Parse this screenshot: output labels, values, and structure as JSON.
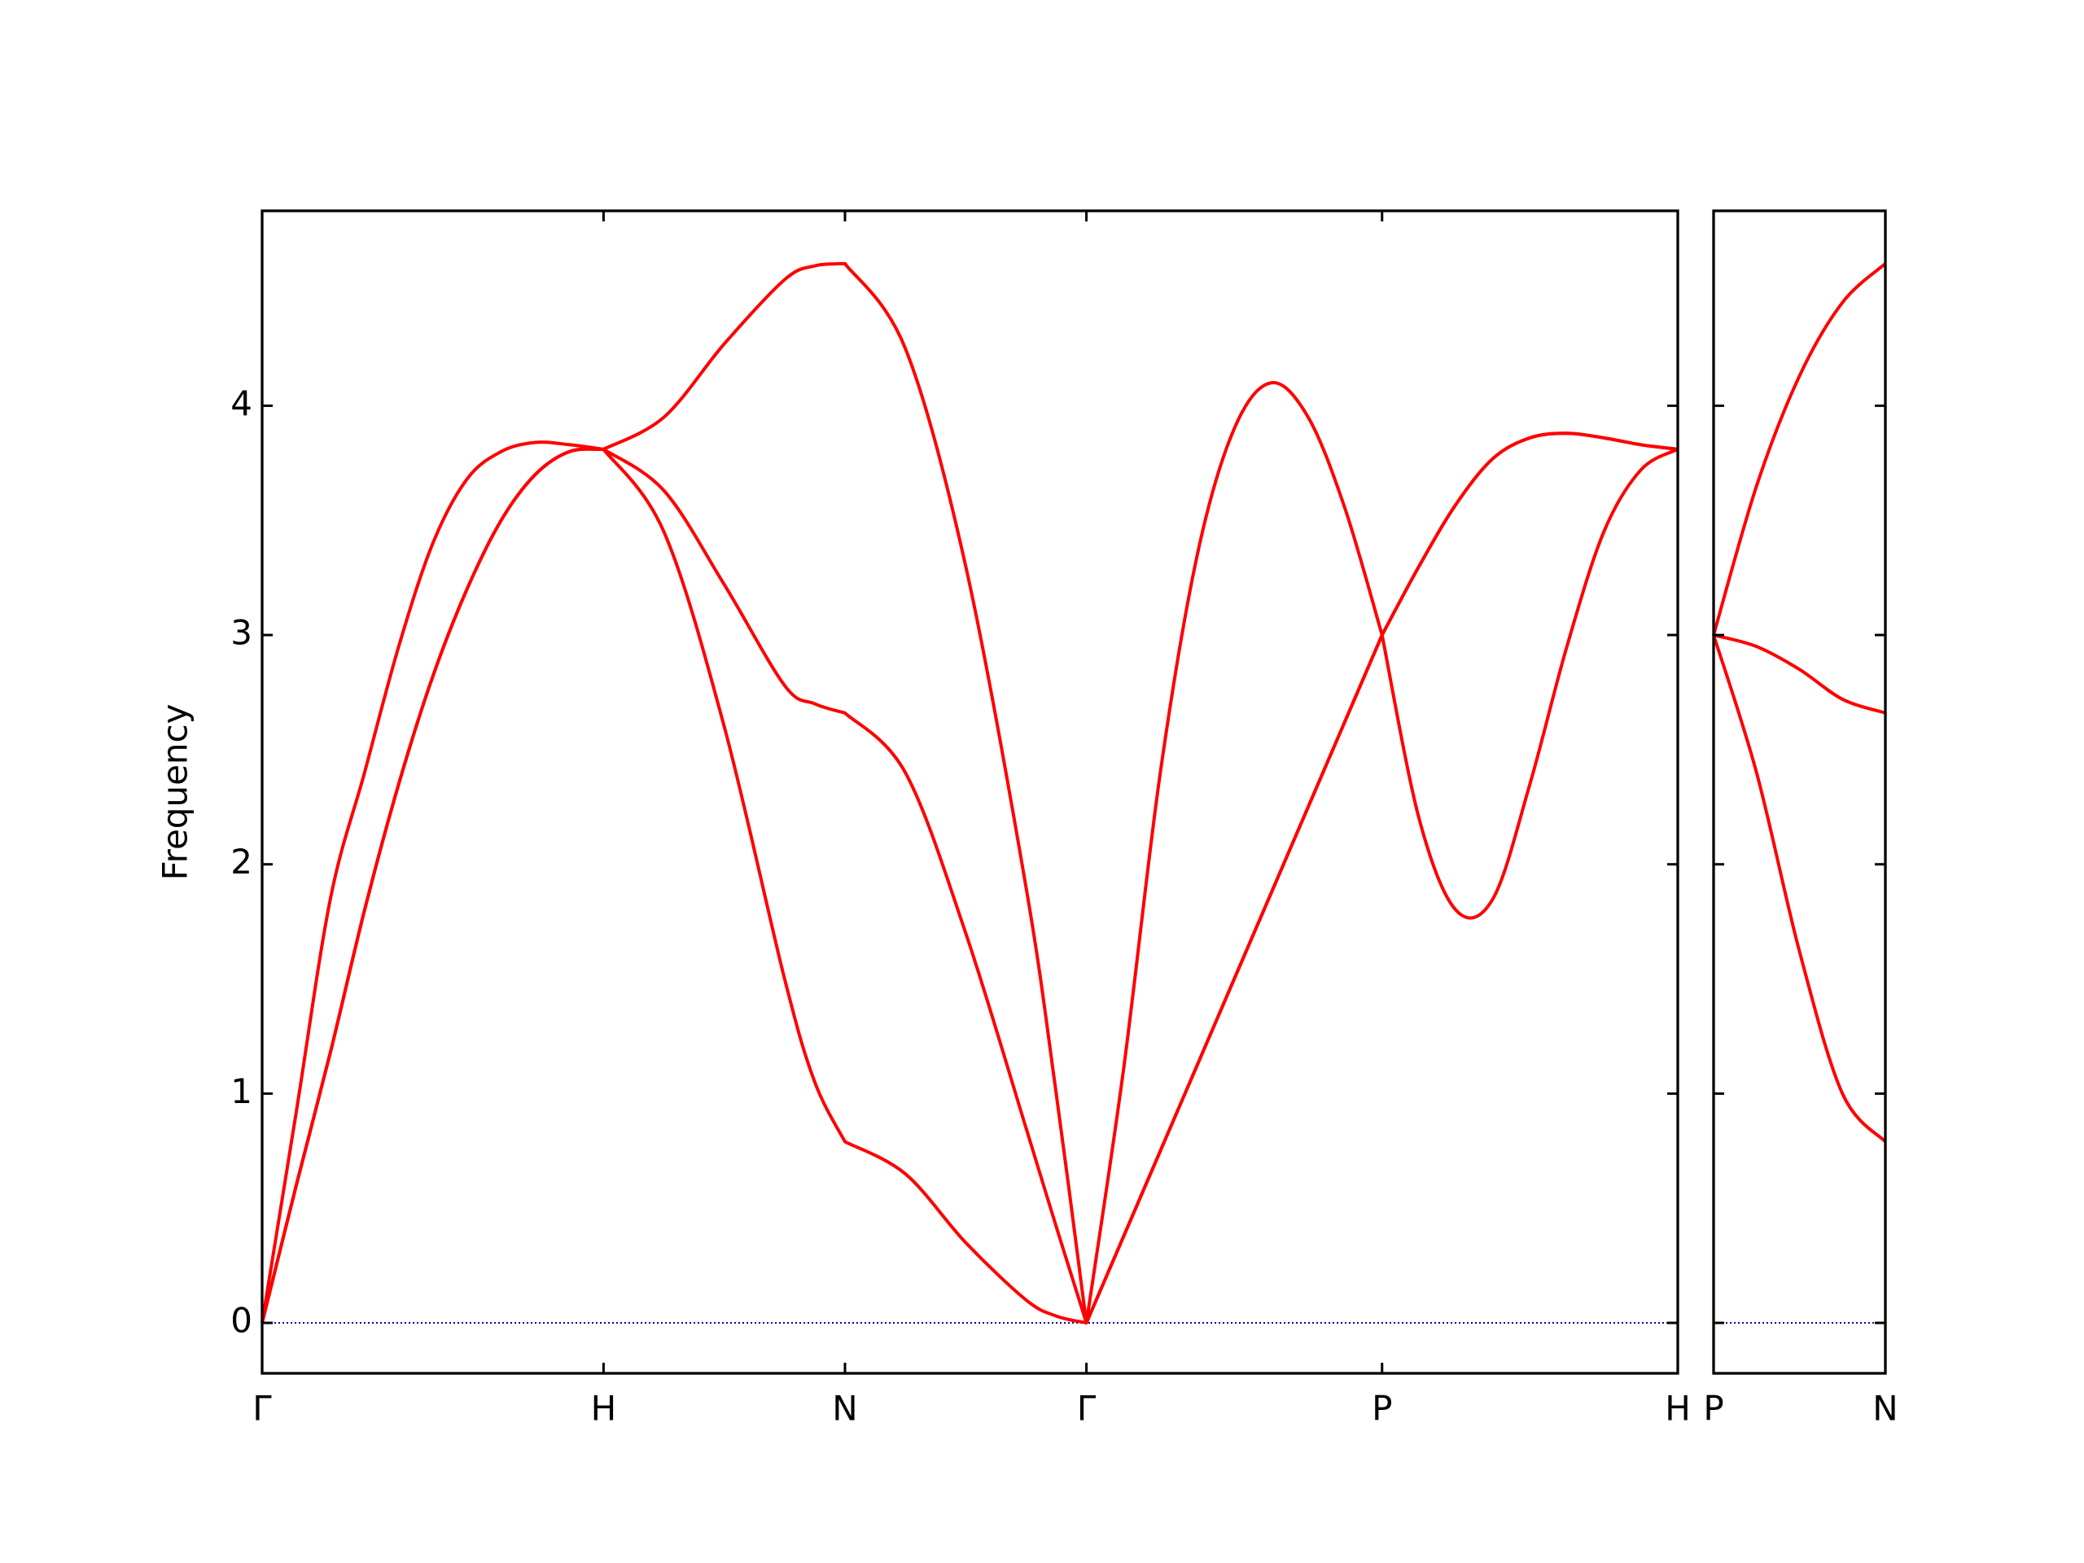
{
  "chart_data": [
    {
      "type": "line",
      "ylabel": "Frequency",
      "x": [
        0,
        0.1,
        0.2,
        0.3,
        0.4,
        0.5,
        0.6,
        0.7,
        0.8,
        0.9,
        1.0,
        1.1768,
        1.3536,
        1.5303,
        1.6187,
        1.7071,
        1.8839,
        2.0607,
        2.2374,
        2.3258,
        2.4142,
        2.5225,
        2.6307,
        2.739,
        2.8472,
        2.9555,
        3.0637,
        3.172,
        3.2802,
        3.3885,
        3.4967,
        3.605,
        3.7132,
        3.8215,
        3.9297,
        4.038,
        4.1463
      ],
      "series": [
        {
          "color": "#ff0000",
          "values": [
            0,
            0.6,
            1.18,
            1.8,
            2.35,
            2.82,
            3.2,
            3.5,
            3.7,
            3.8,
            3.81,
            3.45,
            2.6,
            1.5,
            1.05,
            0.79,
            0.65,
            0.35,
            0.1,
            0.03,
            0,
            0.375,
            0.75,
            1.125,
            1.5,
            1.875,
            2.25,
            2.625,
            3.0,
            2.2,
            1.8,
            1.85,
            2.35,
            2.95,
            3.45,
            3.72,
            3.81
          ]
        },
        {
          "color": "#ff0000",
          "values": [
            0,
            0.6,
            1.18,
            1.8,
            2.35,
            2.82,
            3.2,
            3.5,
            3.7,
            3.8,
            3.81,
            3.63,
            3.22,
            2.78,
            2.7,
            2.66,
            2.4,
            1.7,
            0.85,
            0.42,
            0,
            0.375,
            0.75,
            1.125,
            1.5,
            1.875,
            2.25,
            2.625,
            3.0,
            3.3,
            3.57,
            3.77,
            3.86,
            3.88,
            3.86,
            3.83,
            3.81
          ]
        },
        {
          "color": "#ff0000",
          "values": [
            0,
            0.92,
            1.85,
            2.4,
            2.95,
            3.4,
            3.68,
            3.8,
            3.84,
            3.83,
            3.81,
            3.95,
            4.27,
            4.55,
            4.61,
            4.62,
            4.25,
            3.3,
            1.9,
            1.0,
            0,
            1.1,
            2.4,
            3.35,
            3.9,
            4.1,
            3.95,
            3.55,
            3.0,
            3.3,
            3.57,
            3.77,
            3.86,
            3.88,
            3.86,
            3.83,
            3.81
          ]
        }
      ],
      "xlim": [
        0,
        4.1463
      ],
      "xticks": [
        {
          "value": 0,
          "label": "Γ"
        },
        {
          "value": 1.0,
          "label": "H"
        },
        {
          "value": 1.7071,
          "label": "N"
        },
        {
          "value": 2.4142,
          "label": "Γ"
        },
        {
          "value": 3.2802,
          "label": "P"
        },
        {
          "value": 4.1463,
          "label": "H"
        }
      ],
      "ylim": [
        -0.22,
        4.85
      ],
      "yticks": [
        0,
        1,
        2,
        3,
        4
      ],
      "ytick_labels": true,
      "zero_line": {
        "value": 0,
        "color": "#0000aa"
      }
    },
    {
      "type": "line",
      "x": [
        0,
        0.125,
        0.25,
        0.375,
        0.5
      ],
      "series": [
        {
          "color": "#ff0000",
          "values": [
            3.0,
            2.4,
            1.62,
            1.0,
            0.79
          ]
        },
        {
          "color": "#ff0000",
          "values": [
            3.0,
            2.95,
            2.85,
            2.72,
            2.66
          ]
        },
        {
          "color": "#ff0000",
          "values": [
            3.0,
            3.65,
            4.13,
            4.45,
            4.62
          ]
        }
      ],
      "xlim": [
        0,
        0.5
      ],
      "xticks": [
        {
          "value": 0,
          "label": "P"
        },
        {
          "value": 0.5,
          "label": "N"
        }
      ],
      "ylim": [
        -0.22,
        4.85
      ],
      "yticks": [
        0,
        1,
        2,
        3,
        4
      ],
      "ytick_labels": false,
      "zero_line": {
        "value": 0,
        "color": "#0000aa"
      }
    }
  ]
}
